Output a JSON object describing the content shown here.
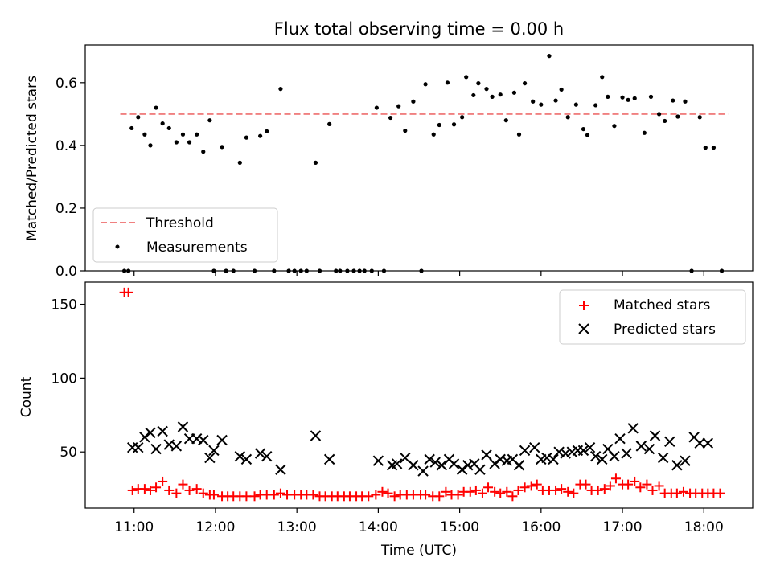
{
  "chart_data": [
    {
      "type": "scatter",
      "title": "Flux total observing time = 0.00 h",
      "xlabel": "",
      "ylabel": "Matched/Predicted stars",
      "xlim": [
        10.4,
        18.6
      ],
      "ylim": [
        0.0,
        0.72
      ],
      "yticks": [
        0.0,
        0.2,
        0.4,
        0.6
      ],
      "ytick_labels": [
        "0.0",
        "0.2",
        "0.4",
        "0.6"
      ],
      "legend_position": "lower-left",
      "threshold": {
        "name": "Threshold",
        "y": 0.5,
        "x": [
          10.83,
          18.3
        ],
        "color": "#f08080"
      },
      "series": [
        {
          "name": "Measurements",
          "marker": "dot",
          "color": "#000000",
          "x": [
            10.88,
            10.93,
            10.97,
            11.05,
            11.13,
            11.2,
            11.27,
            11.35,
            11.43,
            11.52,
            11.6,
            11.68,
            11.77,
            11.85,
            11.93,
            11.98,
            12.08,
            12.13,
            12.22,
            12.3,
            12.38,
            12.48,
            12.55,
            12.63,
            12.72,
            12.8,
            12.9,
            12.97,
            13.05,
            13.12,
            13.23,
            13.28,
            13.4,
            13.48,
            13.53,
            13.62,
            13.7,
            13.77,
            13.83,
            13.92,
            13.98,
            14.07,
            14.15,
            14.25,
            14.33,
            14.43,
            14.53,
            14.58,
            14.68,
            14.75,
            14.85,
            14.93,
            15.03,
            15.08,
            15.17,
            15.23,
            15.33,
            15.4,
            15.5,
            15.57,
            15.67,
            15.73,
            15.8,
            15.9,
            16.0,
            16.1,
            16.18,
            16.25,
            16.33,
            16.43,
            16.52,
            16.57,
            16.67,
            16.75,
            16.82,
            16.9,
            17.0,
            17.07,
            17.15,
            17.27,
            17.35,
            17.45,
            17.52,
            17.62,
            17.68,
            17.77,
            17.85,
            17.95,
            18.02,
            18.12,
            18.22
          ],
          "y": [
            0.0,
            0.0,
            0.455,
            0.49,
            0.435,
            0.4,
            0.52,
            0.47,
            0.455,
            0.41,
            0.435,
            0.41,
            0.435,
            0.38,
            0.48,
            0.0,
            0.395,
            0.0,
            0.0,
            0.345,
            0.425,
            0.0,
            0.43,
            0.445,
            0.0,
            0.58,
            0.0,
            0.0,
            0.0,
            0.0,
            0.345,
            0.0,
            0.468,
            0.0,
            0.0,
            0.0,
            0.0,
            0.0,
            0.0,
            0.0,
            0.52,
            0.0,
            0.488,
            0.525,
            0.447,
            0.54,
            0.0,
            0.595,
            0.435,
            0.465,
            0.6,
            0.467,
            0.49,
            0.618,
            0.56,
            0.598,
            0.58,
            0.555,
            0.562,
            0.48,
            0.568,
            0.435,
            0.598,
            0.54,
            0.53,
            0.685,
            0.543,
            0.578,
            0.49,
            0.53,
            0.452,
            0.433,
            0.528,
            0.618,
            0.555,
            0.462,
            0.553,
            0.545,
            0.55,
            0.44,
            0.555,
            0.5,
            0.478,
            0.543,
            0.492,
            0.54,
            0.0,
            0.49,
            0.393,
            0.393,
            0.0
          ]
        }
      ]
    },
    {
      "type": "scatter",
      "title": "",
      "xlabel": "Time (UTC)",
      "ylabel": "Count",
      "xlim": [
        10.4,
        18.6
      ],
      "ylim": [
        12,
        165
      ],
      "xticks": [
        11,
        12,
        13,
        14,
        15,
        16,
        17,
        18
      ],
      "xtick_labels": [
        "11:00",
        "12:00",
        "13:00",
        "14:00",
        "15:00",
        "16:00",
        "17:00",
        "18:00"
      ],
      "yticks": [
        50,
        100,
        150
      ],
      "ytick_labels": [
        "50",
        "100",
        "150"
      ],
      "legend_position": "upper-right",
      "series": [
        {
          "name": "Matched stars",
          "marker": "plus",
          "color": "#ff0000",
          "x": [
            10.88,
            10.93,
            10.98,
            11.05,
            11.13,
            11.2,
            11.27,
            11.35,
            11.43,
            11.52,
            11.6,
            11.68,
            11.77,
            11.85,
            11.93,
            11.98,
            12.08,
            12.15,
            12.22,
            12.3,
            12.38,
            12.48,
            12.55,
            12.63,
            12.72,
            12.8,
            12.88,
            12.97,
            13.05,
            13.12,
            13.2,
            13.28,
            13.35,
            13.43,
            13.5,
            13.58,
            13.65,
            13.73,
            13.8,
            13.88,
            13.97,
            14.05,
            14.12,
            14.2,
            14.27,
            14.35,
            14.43,
            14.52,
            14.58,
            14.67,
            14.75,
            14.83,
            14.9,
            14.98,
            15.05,
            15.13,
            15.2,
            15.28,
            15.35,
            15.43,
            15.5,
            15.58,
            15.65,
            15.72,
            15.8,
            15.88,
            15.95,
            16.02,
            16.1,
            16.18,
            16.25,
            16.33,
            16.4,
            16.48,
            16.55,
            16.62,
            16.7,
            16.78,
            16.85,
            16.92,
            17.0,
            17.07,
            17.15,
            17.22,
            17.3,
            17.37,
            17.45,
            17.52,
            17.6,
            17.67,
            17.75,
            17.83,
            17.9,
            17.98,
            18.05,
            18.12,
            18.2
          ],
          "y": [
            158,
            158,
            24,
            25,
            25,
            24,
            26,
            30,
            24,
            22,
            28,
            24,
            25,
            22,
            21,
            21,
            20,
            20,
            20,
            20,
            20,
            20,
            21,
            21,
            21,
            22,
            21,
            21,
            21,
            21,
            21,
            20,
            20,
            20,
            20,
            20,
            20,
            20,
            20,
            20,
            21,
            23,
            22,
            20,
            21,
            21,
            21,
            21,
            21,
            20,
            20,
            23,
            21,
            21,
            23,
            23,
            24,
            22,
            26,
            23,
            22,
            23,
            20,
            24,
            26,
            27,
            28,
            24,
            24,
            24,
            25,
            23,
            22,
            28,
            28,
            24,
            24,
            25,
            27,
            32,
            28,
            28,
            30,
            26,
            28,
            24,
            27,
            22,
            22,
            22,
            23,
            22,
            22,
            22,
            22,
            22,
            22
          ]
        },
        {
          "name": "Predicted stars",
          "marker": "x",
          "color": "#000000",
          "x": [
            10.98,
            11.05,
            11.13,
            11.2,
            11.27,
            11.35,
            11.43,
            11.52,
            11.6,
            11.68,
            11.77,
            11.85,
            11.93,
            11.98,
            12.08,
            12.3,
            12.38,
            12.55,
            12.63,
            12.8,
            13.23,
            13.4,
            14.0,
            14.17,
            14.23,
            14.33,
            14.43,
            14.55,
            14.63,
            14.7,
            14.78,
            14.87,
            14.93,
            15.03,
            15.1,
            15.18,
            15.25,
            15.33,
            15.43,
            15.5,
            15.58,
            15.65,
            15.73,
            15.8,
            15.92,
            16.0,
            16.07,
            16.15,
            16.22,
            16.3,
            16.38,
            16.45,
            16.52,
            16.6,
            16.67,
            16.75,
            16.82,
            16.9,
            16.97,
            17.05,
            17.13,
            17.23,
            17.33,
            17.4,
            17.5,
            17.58,
            17.67,
            17.77,
            17.88,
            17.95,
            18.05
          ],
          "y": [
            53,
            53,
            60,
            63,
            52,
            64,
            55,
            54,
            67,
            59,
            59,
            58,
            46,
            51,
            58,
            47,
            45,
            49,
            47,
            38,
            61,
            45,
            44,
            41,
            42,
            46,
            41,
            37,
            45,
            43,
            41,
            45,
            42,
            38,
            41,
            42,
            38,
            48,
            42,
            45,
            44,
            45,
            41,
            51,
            53,
            45,
            46,
            45,
            50,
            49,
            50,
            51,
            51,
            53,
            47,
            45,
            52,
            47,
            59,
            49,
            66,
            54,
            52,
            61,
            46,
            57,
            41,
            44,
            60,
            56,
            56
          ]
        }
      ]
    }
  ]
}
